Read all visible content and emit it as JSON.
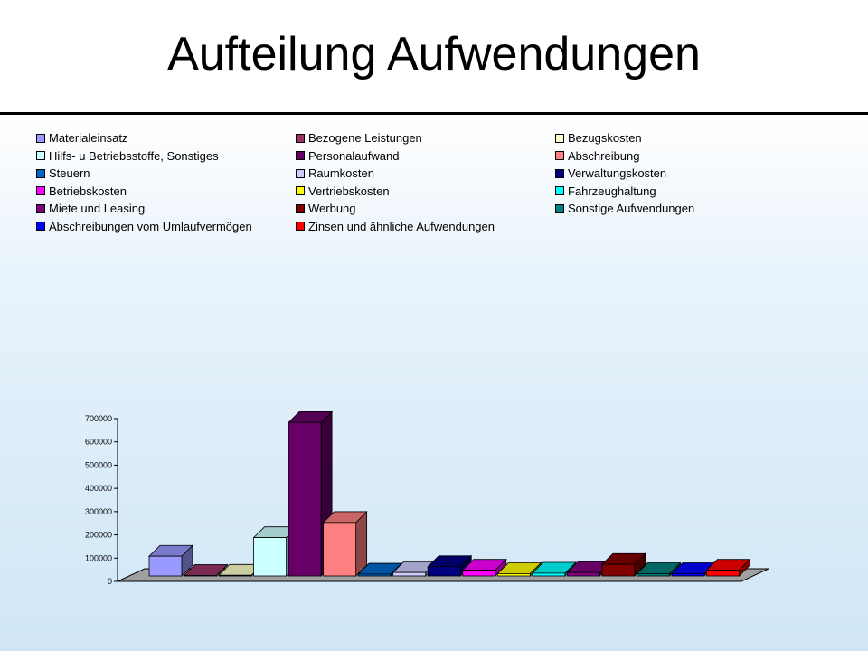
{
  "slide": {
    "title": "Aufteilung Aufwendungen"
  },
  "chart_data": {
    "type": "bar",
    "title": "",
    "xlabel": "",
    "ylabel": "",
    "ylim": [
      0,
      700000
    ],
    "yticks": [
      "0",
      "100000",
      "200000",
      "300000",
      "400000",
      "500000",
      "600000",
      "700000"
    ],
    "legend_placement": "top",
    "series": [
      {
        "name": "Materialeinsatz",
        "value": 85000,
        "color": "#9999ff"
      },
      {
        "name": "Bezogene Leistungen",
        "value": 2000,
        "color": "#993366"
      },
      {
        "name": " Bezugskosten",
        "value": 3000,
        "color": "#ffffcc"
      },
      {
        "name": "Hilfs- u Betriebsstoffe, Sonstiges",
        "value": 165000,
        "color": "#ccffff"
      },
      {
        "name": "Personalaufwand",
        "value": 660000,
        "color": "#660066"
      },
      {
        "name": "Abschreibung",
        "value": 230000,
        "color": "#ff8080"
      },
      {
        "name": "Steuern",
        "value": 8000,
        "color": "#0066cc"
      },
      {
        "name": "Raumkosten",
        "value": 15000,
        "color": "#ccccff"
      },
      {
        "name": "Verwaltungskosten",
        "value": 40000,
        "color": "#000080"
      },
      {
        "name": "Betriebskosten",
        "value": 25000,
        "color": "#ff00ff"
      },
      {
        "name": "Vertriebskosten",
        "value": 10000,
        "color": "#ffff00"
      },
      {
        "name": "Fahrzeughaltung",
        "value": 12000,
        "color": "#00ffff"
      },
      {
        "name": "Miete und Leasing",
        "value": 15000,
        "color": "#800080"
      },
      {
        "name": "Werbung",
        "value": 50000,
        "color": "#800000"
      },
      {
        "name": "Sonstige Aufwendungen",
        "value": 10000,
        "color": "#008080"
      },
      {
        "name": "Abschreibungen vom Umlaufvermögen",
        "value": 10000,
        "color": "#0000ff"
      },
      {
        "name": "Zinsen und ähnliche Aufwendungen",
        "value": 25000,
        "color": "#ff0000"
      }
    ]
  }
}
